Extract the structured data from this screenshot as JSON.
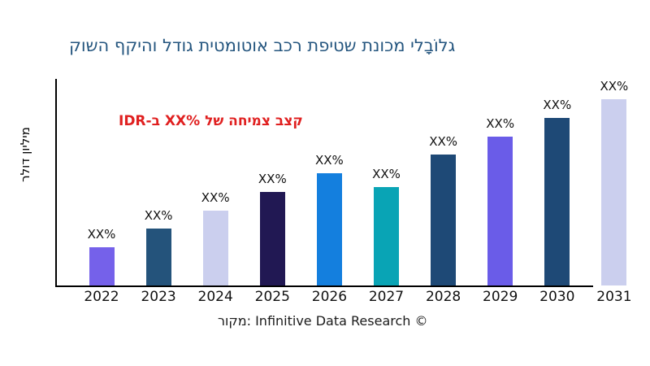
{
  "title": "גלוֹבָלי מכונת שטיפת רכב אוטומטית גודל והיקף השוק",
  "annotation": {
    "prefix": "קצב צמיחה של",
    "value": "XX%",
    "suffix": "ב-IDR"
  },
  "y_axis_label": "מיליון דולר",
  "source": "מקור: Infinitive Data Research ©",
  "colors": {
    "title": "#25567F",
    "annotation": "#E02020",
    "axis": "#000000",
    "labels": "#111111"
  },
  "chart_data": {
    "type": "bar",
    "title": "גלוֹבָלי מכונת שטיפת רכב אוטומטית גודל והיקף השוק",
    "xlabel": "",
    "ylabel": "מיליון דולר",
    "categories": [
      "2022",
      "2023",
      "2024",
      "2025",
      "2026",
      "2027",
      "2028",
      "2029",
      "2030",
      "2031"
    ],
    "value_labels": [
      "XX%",
      "XX%",
      "XX%",
      "XX%",
      "XX%",
      "XX%",
      "XX%",
      "XX%",
      "XX%",
      "XX%"
    ],
    "values": [
      47,
      70,
      92,
      115,
      138,
      121,
      161,
      183,
      206,
      229
    ],
    "ylim": [
      0,
      254
    ],
    "y_tick_labels": "none",
    "grid": false,
    "legend": false,
    "bar_colors": [
      "#7561EA",
      "#24537B",
      "#CBCFEE",
      "#211853",
      "#147FDE",
      "#09A4B5",
      "#1E4976",
      "#6A5CE8",
      "#1E4976",
      "#CBCFEE"
    ],
    "annotation_text": "קצב צמיחה של XX% ב-IDR"
  }
}
